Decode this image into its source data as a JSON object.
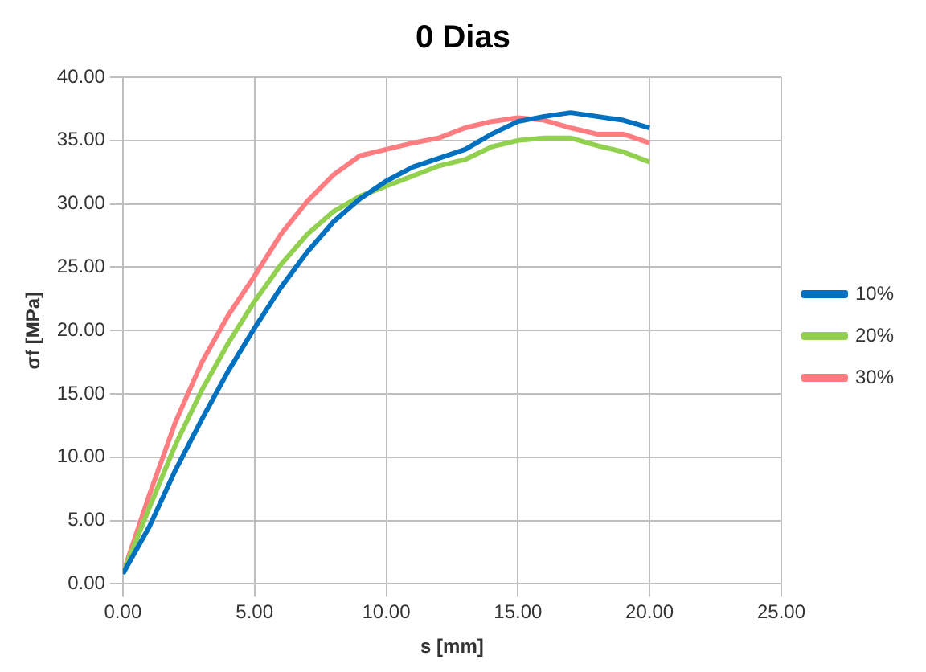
{
  "chart_data": {
    "type": "line",
    "title": "0 Dias",
    "xlabel": "s [mm]",
    "ylabel": "σf [MPa]",
    "xlim": [
      0,
      25
    ],
    "xticks": [
      {
        "value": 0,
        "label": "0.00"
      },
      {
        "value": 5,
        "label": "5.00"
      },
      {
        "value": 10,
        "label": "10.00"
      },
      {
        "value": 15,
        "label": "15.00"
      },
      {
        "value": 20,
        "label": "20.00"
      },
      {
        "value": 25,
        "label": "25.00"
      }
    ],
    "ylim": [
      0,
      40
    ],
    "yticks": [
      {
        "value": 0,
        "label": "0.00"
      },
      {
        "value": 5,
        "label": "5.00"
      },
      {
        "value": 10,
        "label": "10.00"
      },
      {
        "value": 15,
        "label": "15.00"
      },
      {
        "value": 20,
        "label": "20.00"
      },
      {
        "value": 25,
        "label": "25.00"
      },
      {
        "value": 30,
        "label": "30.00"
      },
      {
        "value": 35,
        "label": "35.00"
      },
      {
        "value": 40,
        "label": "40.00"
      }
    ],
    "grid": true,
    "legend": "right",
    "marker": "none",
    "line_style": "solid",
    "series": [
      {
        "name": "10%",
        "color": "#0070c0",
        "x": [
          0,
          1,
          2,
          3,
          4,
          5,
          6,
          7,
          8,
          9,
          10,
          11,
          12,
          13,
          14,
          15,
          16,
          17,
          18,
          19,
          20
        ],
        "values": [
          0.8,
          4.5,
          9,
          13,
          16.8,
          20.2,
          23.4,
          26.2,
          28.6,
          30.4,
          31.8,
          32.9,
          33.6,
          34.3,
          35.5,
          36.5,
          36.9,
          37.2,
          36.9,
          36.6,
          36
        ]
      },
      {
        "name": "20%",
        "color": "#92d050",
        "x": [
          0,
          1,
          2,
          3,
          4,
          5,
          6,
          7,
          8,
          9,
          10,
          11,
          12,
          13,
          14,
          15,
          16,
          17,
          18,
          19,
          20
        ],
        "values": [
          0.8,
          6,
          11,
          15.3,
          19,
          22.3,
          25.2,
          27.6,
          29.4,
          30.6,
          31.4,
          32.2,
          33,
          33.5,
          34.5,
          35,
          35.2,
          35.2,
          34.6,
          34.1,
          33.3
        ]
      },
      {
        "name": "30%",
        "color": "#ff7c80",
        "x": [
          0,
          1,
          2,
          3,
          4,
          5,
          6,
          7,
          8,
          9,
          10,
          11,
          12,
          13,
          14,
          15,
          16,
          17,
          18,
          19,
          20
        ],
        "values": [
          0.8,
          7,
          12.8,
          17.5,
          21.2,
          24.3,
          27.6,
          30.2,
          32.3,
          33.8,
          34.3,
          34.8,
          35.2,
          36,
          36.5,
          36.8,
          36.6,
          36,
          35.5,
          35.5,
          34.8
        ]
      }
    ]
  }
}
